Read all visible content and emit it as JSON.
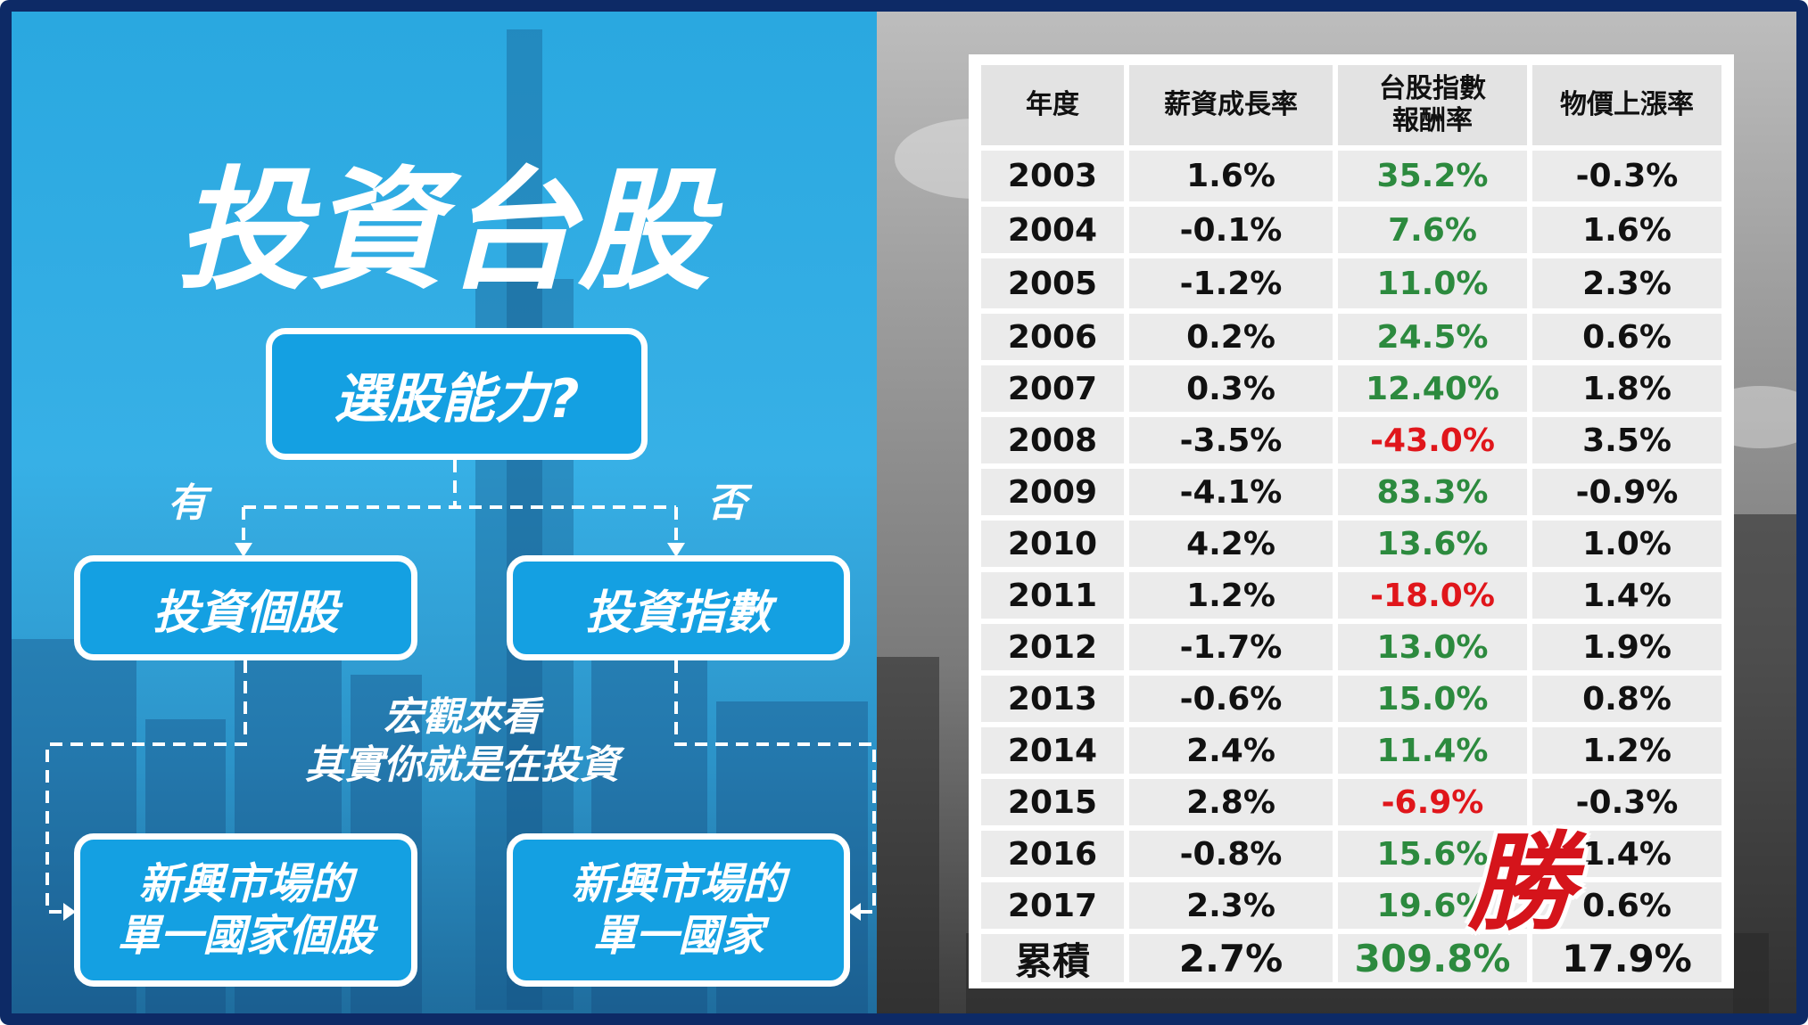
{
  "left": {
    "title": "投資台股",
    "question": "選股能力?",
    "yes": "有",
    "no": "否",
    "branch_left": "投資個股",
    "branch_right": "投資指數",
    "note_line1": "宏觀來看",
    "note_line2": "其實你就是在投資",
    "result_left_line1": "新興市場的",
    "result_left_line2": "單一國家個股",
    "result_right_line1": "新興市場的",
    "result_right_line2": "單一國家"
  },
  "table": {
    "headers": [
      "年度",
      "薪資成長率",
      "台股指數\n報酬率",
      "物價上漲率"
    ],
    "header_index_line1": "台股指數",
    "header_index_line2": "報酬率",
    "rows": [
      {
        "year": "2003",
        "wage": "1.6%",
        "index": "35.2%",
        "cpi": "-0.3%"
      },
      {
        "year": "2004",
        "wage": "-0.1%",
        "index": "7.6%",
        "cpi": "1.6%"
      },
      {
        "year": "2005",
        "wage": "-1.2%",
        "index": "11.0%",
        "cpi": "2.3%"
      },
      {
        "year": "2006",
        "wage": "0.2%",
        "index": "24.5%",
        "cpi": "0.6%"
      },
      {
        "year": "2007",
        "wage": "0.3%",
        "index": "12.40%",
        "cpi": "1.8%"
      },
      {
        "year": "2008",
        "wage": "-3.5%",
        "index": "-43.0%",
        "cpi": "3.5%"
      },
      {
        "year": "2009",
        "wage": "-4.1%",
        "index": "83.3%",
        "cpi": "-0.9%"
      },
      {
        "year": "2010",
        "wage": "4.2%",
        "index": "13.6%",
        "cpi": "1.0%"
      },
      {
        "year": "2011",
        "wage": "1.2%",
        "index": "-18.0%",
        "cpi": "1.4%"
      },
      {
        "year": "2012",
        "wage": "-1.7%",
        "index": "13.0%",
        "cpi": "1.9%"
      },
      {
        "year": "2013",
        "wage": "-0.6%",
        "index": "15.0%",
        "cpi": "0.8%"
      },
      {
        "year": "2014",
        "wage": "2.4%",
        "index": "11.4%",
        "cpi": "1.2%"
      },
      {
        "year": "2015",
        "wage": "2.8%",
        "index": "-6.9%",
        "cpi": "-0.3%"
      },
      {
        "year": "2016",
        "wage": "-0.8%",
        "index": "15.6%",
        "cpi": "1.4%"
      },
      {
        "year": "2017",
        "wage": "2.3%",
        "index": "19.6%",
        "cpi": "0.6%"
      }
    ],
    "total": {
      "year": "累積",
      "wage": "2.7%",
      "index": "309.8%",
      "cpi": "17.9%"
    },
    "win_stamp": "勝"
  },
  "colors": {
    "positive": "#2c8a3e",
    "negative": "#e0161b",
    "box_fill": "#14a0e2",
    "frame": "#0d2a66"
  }
}
